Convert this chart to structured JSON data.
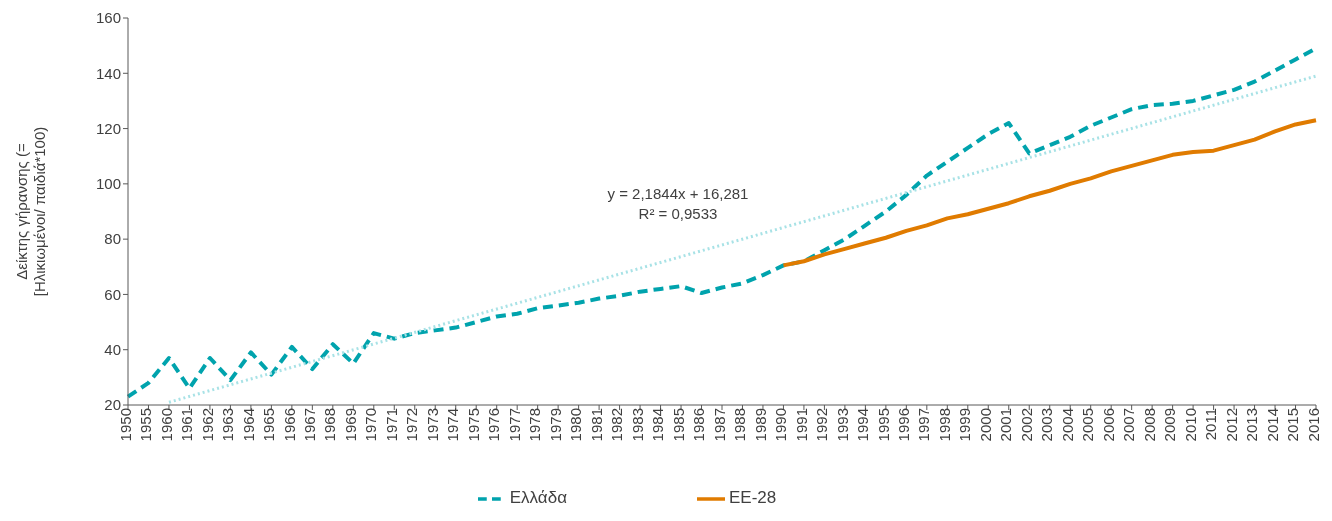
{
  "chart_data": {
    "type": "line",
    "ylabel": "Δείκτης γήρανσης (=\n[Ηλικιωμένοι/ παιδιά*100)",
    "categories": [
      "1950",
      "1955",
      "1960",
      "1961",
      "1962",
      "1963",
      "1964",
      "1965",
      "1966",
      "1967",
      "1968",
      "1969",
      "1970",
      "1971",
      "1972",
      "1973",
      "1974",
      "1975",
      "1976",
      "1977",
      "1978",
      "1979",
      "1980",
      "1981",
      "1982",
      "1983",
      "1984",
      "1985",
      "1986",
      "1987",
      "1988",
      "1989",
      "1990",
      "1991",
      "1992",
      "1993",
      "1994",
      "1995",
      "1996",
      "1997",
      "1998",
      "1999",
      "2000",
      "2001",
      "2002",
      "2003",
      "2004",
      "2005",
      "2006",
      "2007",
      "2008",
      "2009",
      "2010",
      "2011",
      "2012",
      "2013",
      "2014",
      "2015",
      "2016"
    ],
    "series": [
      {
        "name": "Ελλάδα",
        "color": "#00a3ad",
        "line_style": "dashed",
        "values": [
          23,
          28,
          37,
          26,
          37,
          29,
          39,
          31,
          41,
          33,
          42,
          35,
          46,
          44,
          46,
          47,
          48,
          50,
          52,
          53,
          55,
          56,
          57,
          58.5,
          59.5,
          61,
          62,
          63,
          60.5,
          62.5,
          64,
          67,
          70.5,
          72,
          76,
          80,
          85,
          90,
          96,
          103,
          108,
          113,
          118,
          122,
          111,
          114,
          117,
          121,
          124,
          127,
          128.5,
          129,
          130,
          132,
          134,
          137,
          141,
          145,
          149
        ]
      },
      {
        "name": "ΕΕ-28",
        "color": "#e07b00",
        "line_style": "solid",
        "values": [
          null,
          null,
          null,
          null,
          null,
          null,
          null,
          null,
          null,
          null,
          null,
          null,
          null,
          null,
          null,
          null,
          null,
          null,
          null,
          null,
          null,
          null,
          null,
          null,
          null,
          null,
          null,
          null,
          null,
          null,
          null,
          null,
          70.5,
          72,
          74.5,
          76.5,
          78.5,
          80.5,
          83,
          85,
          87.5,
          89,
          91,
          93,
          95.5,
          97.5,
          100,
          102,
          104.5,
          106.5,
          108.5,
          110.5,
          111.5,
          112,
          114,
          116,
          119,
          121.5,
          123
        ]
      },
      {
        "type": "line",
        "color": "#a8e2e6",
        "line_style": "dotted",
        "values": [
          null,
          null,
          21,
          null,
          null,
          null,
          null,
          null,
          null,
          null,
          null,
          null,
          null,
          null,
          null,
          null,
          null,
          null,
          null,
          null,
          null,
          null,
          null,
          null,
          null,
          null,
          null,
          null,
          null,
          null,
          null,
          null,
          null,
          null,
          null,
          null,
          null,
          null,
          null,
          null,
          null,
          null,
          null,
          null,
          null,
          null,
          null,
          null,
          null,
          null,
          null,
          null,
          null,
          null,
          null,
          null,
          null,
          null,
          139
        ]
      }
    ],
    "ylim": [
      20,
      160
    ],
    "yticks": [
      20,
      40,
      60,
      80,
      100,
      120,
      140,
      160
    ],
    "annotations": [
      "y = 2,1844x + 16,281",
      "R² = 0,9533"
    ],
    "grid": false,
    "legend": "bottom",
    "marker": "none"
  }
}
